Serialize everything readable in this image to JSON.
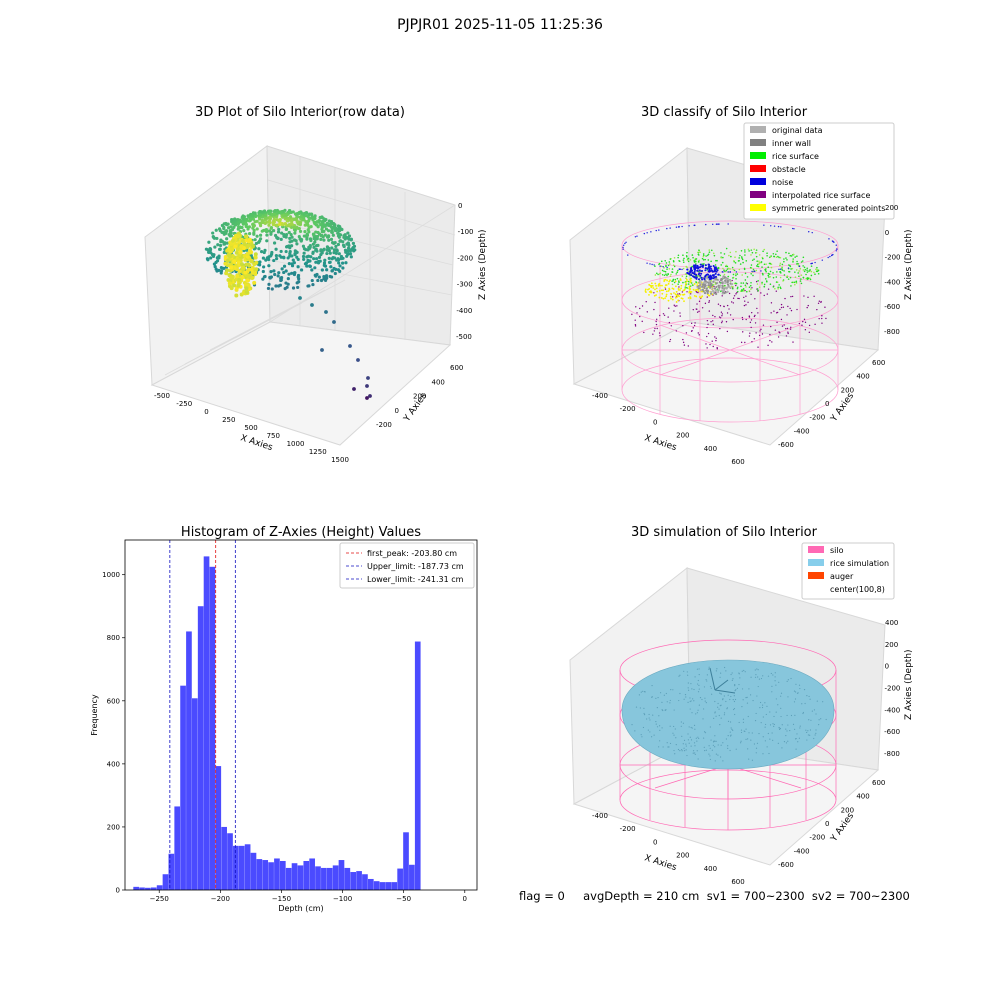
{
  "figure": {
    "title": "PJPJR01 2025-11-05 11:25:36"
  },
  "status": {
    "text": "flag = 0     avgDepth = 210 cm  sv1 = 700~2300  sv2 = 700~2300"
  },
  "chart_data": [
    {
      "type": "scatter",
      "projection": "3d",
      "title": "3D Plot of Silo Interior(row data)",
      "xlabel": "X Axies",
      "ylabel": "Y Axies",
      "zlabel": "Z Axies (Depth)",
      "xticks": [
        "-500",
        "-250",
        "0",
        "250",
        "500",
        "750",
        "1000",
        "1250",
        "1500"
      ],
      "yticks": [
        "-200",
        "0",
        "200",
        "400",
        "600"
      ],
      "zticks": [
        "0",
        "-100",
        "-200",
        "-300",
        "-400",
        "-500"
      ],
      "xlim": [
        -600,
        1500
      ],
      "ylim": [
        -250,
        650
      ],
      "zlim": [
        -520,
        20
      ],
      "colormap": "viridis",
      "points_approx": [
        {
          "x": -100,
          "y": 350,
          "z": -230
        },
        {
          "x": 100,
          "y": 400,
          "z": -200
        },
        {
          "x": 300,
          "y": 420,
          "z": -180
        },
        {
          "x": 500,
          "y": 380,
          "z": -200
        },
        {
          "x": -200,
          "y": 200,
          "z": -280
        },
        {
          "x": 0,
          "y": 250,
          "z": -300
        },
        {
          "x": 200,
          "y": 150,
          "z": -260
        },
        {
          "x": 700,
          "y": 0,
          "z": -350
        },
        {
          "x": 950,
          "y": -100,
          "z": -420
        },
        {
          "x": 1250,
          "y": -200,
          "z": -500
        }
      ]
    },
    {
      "type": "scatter",
      "projection": "3d",
      "title": "3D classify of Silo Interior",
      "xlabel": "X Axies",
      "ylabel": "Y Axies",
      "zlabel": "Z Axies (Depth)",
      "xticks": [
        "-400",
        "-200",
        "0",
        "200",
        "400",
        "600"
      ],
      "yticks": [
        "-600",
        "-400",
        "-200",
        "0",
        "200",
        "400",
        "600"
      ],
      "zticks": [
        "200",
        "0",
        "-200",
        "-400",
        "-600",
        "-800"
      ],
      "legend": [
        {
          "label": "original data",
          "color": "#b0b0b0"
        },
        {
          "label": "inner wall",
          "color": "#808080"
        },
        {
          "label": "rice surface",
          "color": "#00ee00"
        },
        {
          "label": "obstacle",
          "color": "#ff0000"
        },
        {
          "label": "noise",
          "color": "#0000dd"
        },
        {
          "label": "interpolated rice surface",
          "color": "#800080"
        },
        {
          "label": "symmetric generated points",
          "color": "#ffff00"
        }
      ],
      "legend_placement": "upper right"
    },
    {
      "type": "bar",
      "title": "Histogram of Z-Axies (Height) Values",
      "xlabel": "Depth (cm)",
      "ylabel": "Frequency",
      "xticks": [
        -250,
        -200,
        -150,
        -100,
        -50,
        0
      ],
      "yticks": [
        0,
        200,
        400,
        600,
        800,
        1000
      ],
      "xlim": [
        -278,
        10
      ],
      "ylim": [
        0,
        1110
      ],
      "bin_width": 4.8,
      "bin_start": -276,
      "values": [
        0,
        10,
        8,
        7,
        8,
        15,
        50,
        115,
        265,
        648,
        820,
        608,
        900,
        1058,
        1025,
        393,
        200,
        180,
        140,
        140,
        145,
        118,
        98,
        95,
        88,
        100,
        92,
        70,
        85,
        78,
        92,
        100,
        75,
        70,
        70,
        78,
        95,
        70,
        57,
        60,
        50,
        35,
        28,
        25,
        25,
        25,
        68,
        183,
        80,
        788
      ],
      "bar_color": "#4b4bff",
      "vlines": [
        {
          "x": -203.8,
          "label": "first_peak: -203.80 cm",
          "color": "#e01010"
        },
        {
          "x": -187.73,
          "label": "Upper_limit: -187.73 cm",
          "color": "#1010c0"
        },
        {
          "x": -241.31,
          "label": "Lower_limit: -241.31 cm",
          "color": "#1010c0"
        }
      ],
      "legend_placement": "upper right"
    },
    {
      "type": "scatter",
      "projection": "3d",
      "title": "3D simulation of Silo Interior",
      "xlabel": "X Axies",
      "ylabel": "Y Axies",
      "zlabel": "Z Axies (Depth)",
      "xticks": [
        "-400",
        "-200",
        "0",
        "200",
        "400",
        "600"
      ],
      "yticks": [
        "-600",
        "-400",
        "-200",
        "0",
        "200",
        "400",
        "600"
      ],
      "zticks": [
        "400",
        "200",
        "0",
        "-200",
        "-400",
        "-600",
        "-800"
      ],
      "legend": [
        {
          "label": "silo",
          "color": "#ff69b4"
        },
        {
          "label": "rice simulation",
          "color": "#87ceeb"
        },
        {
          "label": "auger",
          "color": "#ff4500"
        },
        {
          "label": "center(100,8)",
          "color": "#ffffff"
        }
      ],
      "legend_placement": "upper right"
    }
  ]
}
